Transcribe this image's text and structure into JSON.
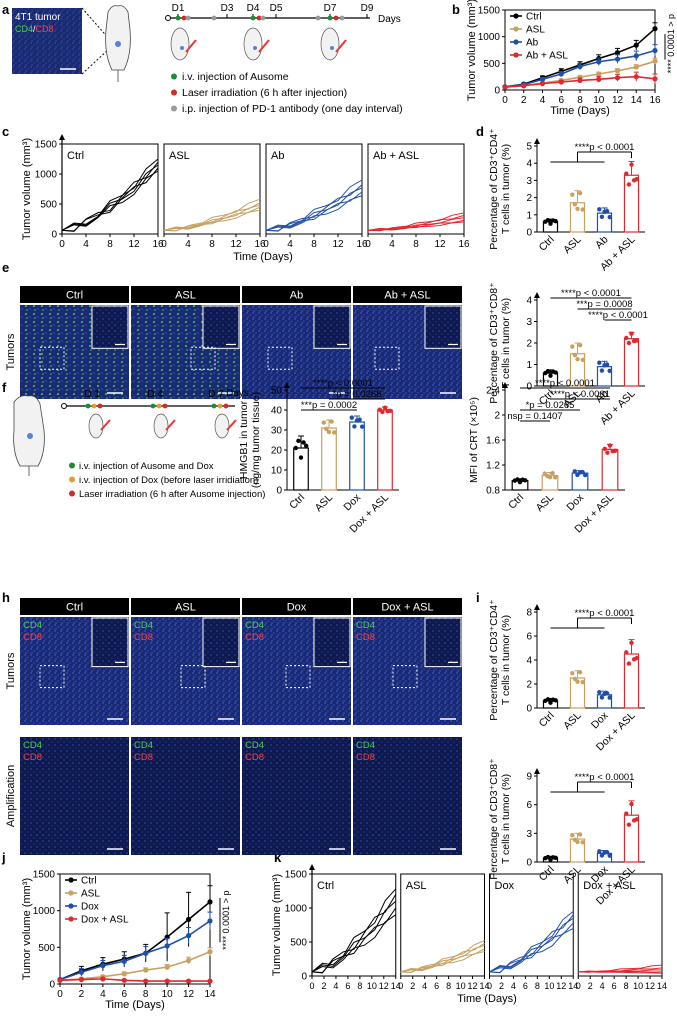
{
  "panels": {
    "a": {
      "letter": "a",
      "micro_title": "4T1 tumor",
      "micro_cd4": "CD4",
      "micro_sep": "/",
      "micro_cd8": "CD8",
      "days": [
        "D1",
        "D3",
        "D4",
        "D5",
        "D7",
        "D9"
      ],
      "days_label": "Days",
      "legend": [
        {
          "text": "i.v. injection of Ausome",
          "color": "#1e8a3c"
        },
        {
          "text": "Laser irradiation (6 h after injection)",
          "color": "#d42a2a"
        },
        {
          "text": "i.p. injection of PD-1 antibody (one day interval)",
          "color": "#9a9a9a"
        }
      ]
    },
    "b": {
      "letter": "b"
    },
    "c": {
      "letter": "c"
    },
    "d": {
      "letter": "d"
    },
    "e": {
      "letter": "e",
      "row_label": "Tumors",
      "headers": [
        "Ctrl",
        "ASL",
        "Ab",
        "Ab + ASL"
      ]
    },
    "f": {
      "letter": "f",
      "days": [
        "D 1",
        "D 4",
        "D 7"
      ],
      "days_label": "Days",
      "legend": [
        {
          "text": "i.v. injection of Ausome and Dox",
          "color": "#1e8a3c"
        },
        {
          "text": "i.v. injection of Dox (before laser irridiation)",
          "color": "#e0a030"
        },
        {
          "text": "Laser irradiation (6 h after Ausome injection)",
          "color": "#d42a2a"
        }
      ]
    },
    "g": {
      "letter": "g"
    },
    "h": {
      "letter": "h",
      "headers": [
        "Ctrl",
        "ASL",
        "Dox",
        "Dox + ASL"
      ],
      "row_labels": [
        "Tumors",
        "Amplification"
      ],
      "cd4": "CD4",
      "cd8": "CD8"
    },
    "i": {
      "letter": "i"
    },
    "j": {
      "letter": "j"
    },
    "k": {
      "letter": "k"
    }
  },
  "chart_data": [
    {
      "id": "b",
      "type": "line",
      "ylabel": "Tumor volume (mm³)",
      "xlabel": "Time (Days)",
      "xlim": [
        0,
        16
      ],
      "ylim": [
        0,
        1500
      ],
      "xticks": [
        0,
        2,
        4,
        6,
        8,
        10,
        12,
        14,
        16
      ],
      "yticks": [
        0,
        500,
        1000,
        1500
      ],
      "legend": "top-left",
      "stat": "****",
      "stat_p": "0.0001 > p",
      "series": [
        {
          "name": "Ctrl",
          "color": "#000000",
          "x": [
            0,
            2,
            4,
            6,
            8,
            10,
            12,
            14,
            16
          ],
          "y": [
            60,
            110,
            230,
            350,
            470,
            590,
            700,
            840,
            1150
          ],
          "err": [
            10,
            20,
            35,
            50,
            60,
            70,
            80,
            90,
            110
          ]
        },
        {
          "name": "ASL",
          "color": "#c8a060",
          "x": [
            0,
            2,
            4,
            6,
            8,
            10,
            12,
            14,
            16
          ],
          "y": [
            55,
            80,
            130,
            180,
            240,
            300,
            360,
            430,
            540
          ],
          "err": [
            8,
            12,
            20,
            25,
            30,
            35,
            40,
            45,
            55
          ]
        },
        {
          "name": "Ab",
          "color": "#1f4fa8",
          "x": [
            0,
            2,
            4,
            6,
            8,
            10,
            12,
            14,
            16
          ],
          "y": [
            60,
            100,
            200,
            300,
            440,
            530,
            580,
            640,
            740
          ],
          "err": [
            10,
            20,
            35,
            45,
            60,
            70,
            80,
            90,
            110
          ]
        },
        {
          "name": "Ab + ASL",
          "color": "#e02830",
          "x": [
            0,
            2,
            4,
            6,
            8,
            10,
            12,
            14,
            16
          ],
          "y": [
            55,
            80,
            120,
            150,
            180,
            200,
            230,
            250,
            210
          ],
          "err": [
            8,
            12,
            20,
            30,
            45,
            55,
            65,
            85,
            90
          ]
        }
      ]
    },
    {
      "id": "c",
      "type": "line",
      "ylabel": "Tumor volume (mm³)",
      "xlabel": "Time (Days)",
      "xlim": [
        0,
        16
      ],
      "ylim": [
        0,
        1500
      ],
      "xticks": [
        0,
        4,
        8,
        12,
        16
      ],
      "yticks": [
        0,
        500,
        1000,
        1500
      ],
      "groups": [
        {
          "name": "Ctrl",
          "color": "#000000",
          "finals": [
            1250,
            1200,
            1150,
            1100,
            1050
          ]
        },
        {
          "name": "ASL",
          "color": "#c8a060",
          "finals": [
            580,
            520,
            480,
            450,
            400
          ]
        },
        {
          "name": "Ab",
          "color": "#1f4fa8",
          "finals": [
            900,
            820,
            770,
            700,
            640
          ]
        },
        {
          "name": "Ab + ASL",
          "color": "#e02830",
          "finals": [
            350,
            310,
            270,
            230,
            200
          ]
        }
      ]
    },
    {
      "id": "d1",
      "type": "bar",
      "ylabel_lines": [
        "Percentage of CD3⁺CD4⁺",
        "T cells in tumor (%)"
      ],
      "categories": [
        "Ctrl",
        "ASL",
        "Ab",
        "Ab + ASL"
      ],
      "colors": [
        "#000000",
        "#c8a060",
        "#1f4fa8",
        "#e02830"
      ],
      "values": [
        0.6,
        1.7,
        1.1,
        3.3
      ],
      "err": [
        0.15,
        0.7,
        0.3,
        0.8
      ],
      "ylim": [
        0,
        5
      ],
      "yticks": [
        0,
        1,
        2,
        3,
        4,
        5
      ],
      "sig": [
        {
          "stars": "****",
          "p": "p < 0.0001"
        }
      ]
    },
    {
      "id": "d2",
      "type": "bar",
      "ylabel_lines": [
        "Percentage of CD3⁺CD8⁺",
        "T cells in tumor (%)"
      ],
      "categories": [
        "Ctrl",
        "ASL",
        "Ab",
        "Ab + ASL"
      ],
      "colors": [
        "#000000",
        "#c8a060",
        "#1f4fa8",
        "#e02830"
      ],
      "values": [
        0.6,
        1.5,
        0.9,
        2.2
      ],
      "err": [
        0.15,
        0.5,
        0.25,
        0.3
      ],
      "ylim": [
        0,
        4
      ],
      "yticks": [
        0,
        1,
        2,
        3,
        4
      ],
      "sig": [
        {
          "stars": "****",
          "p": "p < 0.0001"
        },
        {
          "stars": "***",
          "p": "p = 0.0008"
        },
        {
          "stars": "****",
          "p": "p < 0.0001"
        }
      ]
    },
    {
      "id": "g1",
      "type": "bar",
      "ylabel_lines": [
        "HMGB1 in tumor",
        "(ng/mg tumor tissue)"
      ],
      "categories": [
        "Ctrl",
        "ASL",
        "Dox",
        "Dox + ASL"
      ],
      "colors": [
        "#000000",
        "#c8a060",
        "#1f4fa8",
        "#e02830"
      ],
      "values": [
        21,
        31,
        34,
        40
      ],
      "err": [
        6,
        4,
        3,
        1.5
      ],
      "ylim": [
        0,
        50
      ],
      "yticks": [
        0,
        10,
        20,
        30,
        40,
        50
      ],
      "sig": [
        {
          "stars": "****",
          "p": "p < 0.0001"
        },
        {
          "stars": "*",
          "p": "p = 0.0268"
        },
        {
          "stars": "***",
          "p": "p = 0.0002"
        }
      ]
    },
    {
      "id": "g2",
      "type": "bar",
      "ylabel_lines": [
        "MFI of CRT (×10⁵)"
      ],
      "categories": [
        "Ctrl",
        "ASL",
        "Dox",
        "Dox + ASL"
      ],
      "colors": [
        "#000000",
        "#c8a060",
        "#1f4fa8",
        "#e02830"
      ],
      "values": [
        0.95,
        1.03,
        1.07,
        1.45
      ],
      "err": [
        0.03,
        0.05,
        0.04,
        0.08
      ],
      "ylim": [
        0.8,
        2.4
      ],
      "yticks": [
        0.8,
        1.2,
        1.6,
        2.0,
        2.4
      ],
      "sig": [
        {
          "stars": "****",
          "p": "p < 0.0001"
        },
        {
          "stars": "****",
          "p": "p < 0.0001"
        },
        {
          "stars": "*",
          "p": "p = 0.0265"
        },
        {
          "stars": "ns",
          "p": "p = 0.1407"
        }
      ]
    },
    {
      "id": "i1",
      "type": "bar",
      "ylabel_lines": [
        "Percentage of CD3⁺CD4⁺",
        "T cells in tumor (%)"
      ],
      "categories": [
        "Ctrl",
        "ASL",
        "Dox",
        "Dox + ASL"
      ],
      "colors": [
        "#000000",
        "#c8a060",
        "#1f4fa8",
        "#e02830"
      ],
      "values": [
        0.6,
        2.5,
        1.1,
        4.5
      ],
      "err": [
        0.2,
        0.6,
        0.3,
        1.2
      ],
      "ylim": [
        0,
        8
      ],
      "yticks": [
        0,
        2,
        4,
        6,
        8
      ],
      "sig": [
        {
          "stars": "****",
          "p": "p < 0.0001"
        }
      ]
    },
    {
      "id": "i2",
      "type": "bar",
      "ylabel_lines": [
        "Percentage of CD3⁺CD8⁺",
        "T cells in tumor (%)"
      ],
      "categories": [
        "Ctrl",
        "ASL",
        "Dox",
        "Dox + ASL"
      ],
      "colors": [
        "#000000",
        "#c8a060",
        "#1f4fa8",
        "#e02830"
      ],
      "values": [
        0.4,
        2.4,
        0.9,
        4.9
      ],
      "err": [
        0.2,
        0.6,
        0.3,
        1.5
      ],
      "ylim": [
        0,
        9
      ],
      "yticks": [
        0,
        3,
        6,
        9
      ],
      "sig": [
        {
          "stars": "****",
          "p": "p < 0.0001"
        }
      ]
    },
    {
      "id": "j",
      "type": "line",
      "ylabel": "Tumor volume (mm³)",
      "xlabel": "Time (Days)",
      "xlim": [
        0,
        14
      ],
      "ylim": [
        0,
        1500
      ],
      "xticks": [
        0,
        2,
        4,
        6,
        8,
        10,
        12,
        14
      ],
      "yticks": [
        0,
        500,
        1000,
        1500
      ],
      "legend": "top-left",
      "stat": "****",
      "stat_p": "0.0001 > p",
      "series": [
        {
          "name": "Ctrl",
          "color": "#000000",
          "x": [
            0,
            2,
            4,
            6,
            8,
            10,
            12,
            14
          ],
          "y": [
            60,
            180,
            270,
            340,
            420,
            640,
            880,
            1120
          ],
          "err": [
            15,
            60,
            90,
            100,
            120,
            330,
            370,
            220
          ]
        },
        {
          "name": "ASL",
          "color": "#c8a060",
          "x": [
            0,
            2,
            4,
            6,
            8,
            10,
            12,
            14
          ],
          "y": [
            50,
            70,
            100,
            140,
            190,
            230,
            320,
            440
          ],
          "err": [
            8,
            15,
            20,
            25,
            30,
            35,
            45,
            55
          ]
        },
        {
          "name": "Dox",
          "color": "#1f4fa8",
          "x": [
            0,
            2,
            4,
            6,
            8,
            10,
            12,
            14
          ],
          "y": [
            60,
            160,
            250,
            310,
            420,
            520,
            660,
            860
          ],
          "err": [
            15,
            50,
            70,
            80,
            90,
            100,
            110,
            120
          ]
        },
        {
          "name": "Dox + ASL",
          "color": "#e02830",
          "x": [
            0,
            2,
            4,
            6,
            8,
            10,
            12,
            14
          ],
          "y": [
            50,
            60,
            70,
            50,
            40,
            40,
            40,
            40
          ],
          "err": [
            8,
            10,
            12,
            10,
            8,
            8,
            8,
            8
          ]
        }
      ]
    },
    {
      "id": "k",
      "type": "line",
      "ylabel": "Tumor volume (mm³)",
      "xlabel": "Time (Days)",
      "xlim": [
        0,
        14
      ],
      "ylim": [
        0,
        1500
      ],
      "xticks": [
        0,
        2,
        4,
        6,
        8,
        10,
        12,
        14
      ],
      "yticks": [
        0,
        500,
        1000,
        1500
      ],
      "groups": [
        {
          "name": "Ctrl",
          "color": "#000000",
          "finals": [
            1280,
            1200,
            1100,
            1000,
            900
          ]
        },
        {
          "name": "ASL",
          "color": "#c8a060",
          "finals": [
            520,
            480,
            450,
            400,
            360
          ]
        },
        {
          "name": "Dox",
          "color": "#1f4fa8",
          "finals": [
            950,
            900,
            850,
            780,
            700
          ]
        },
        {
          "name": "Dox + ASL",
          "color": "#e02830",
          "finals": [
            160,
            120,
            90,
            60,
            40
          ]
        }
      ]
    }
  ]
}
